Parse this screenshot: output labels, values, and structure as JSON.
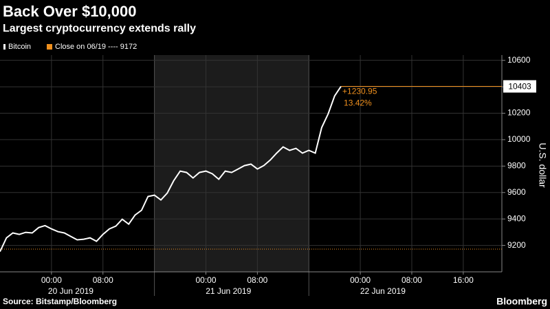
{
  "chart_data": {
    "type": "line",
    "title": "Back Over $10,000",
    "subtitle": "Largest cryptocurrency extends rally",
    "y_axis_label": "U.S. dollar",
    "source": "Source: Bitstamp/Bloomberg",
    "brand": "Bloomberg",
    "x": [
      "2019-06-19T16:00",
      "2019-06-19T17:00",
      "2019-06-19T18:00",
      "2019-06-19T19:00",
      "2019-06-19T20:00",
      "2019-06-19T21:00",
      "2019-06-19T22:00",
      "2019-06-19T23:00",
      "2019-06-20T00:00",
      "2019-06-20T01:00",
      "2019-06-20T02:00",
      "2019-06-20T03:00",
      "2019-06-20T04:00",
      "2019-06-20T05:00",
      "2019-06-20T06:00",
      "2019-06-20T07:00",
      "2019-06-20T08:00",
      "2019-06-20T09:00",
      "2019-06-20T10:00",
      "2019-06-20T11:00",
      "2019-06-20T12:00",
      "2019-06-20T13:00",
      "2019-06-20T14:00",
      "2019-06-20T15:00",
      "2019-06-20T16:00",
      "2019-06-20T17:00",
      "2019-06-20T18:00",
      "2019-06-20T19:00",
      "2019-06-20T20:00",
      "2019-06-20T21:00",
      "2019-06-20T22:00",
      "2019-06-20T23:00",
      "2019-06-21T00:00",
      "2019-06-21T01:00",
      "2019-06-21T02:00",
      "2019-06-21T03:00",
      "2019-06-21T04:00",
      "2019-06-21T05:00",
      "2019-06-21T06:00",
      "2019-06-21T07:00",
      "2019-06-21T08:00",
      "2019-06-21T09:00",
      "2019-06-21T10:00",
      "2019-06-21T11:00",
      "2019-06-21T12:00",
      "2019-06-21T13:00",
      "2019-06-21T14:00",
      "2019-06-21T15:00",
      "2019-06-21T16:00",
      "2019-06-21T17:00",
      "2019-06-21T18:00",
      "2019-06-21T19:00",
      "2019-06-21T20:00",
      "2019-06-21T21:00"
    ],
    "series": [
      {
        "name": "Bitcoin",
        "color": "#ffffff",
        "values": [
          9153,
          9257,
          9294,
          9283,
          9299,
          9294,
          9335,
          9350,
          9325,
          9304,
          9294,
          9268,
          9242,
          9247,
          9257,
          9231,
          9283,
          9325,
          9346,
          9398,
          9361,
          9430,
          9466,
          9570,
          9580,
          9544,
          9596,
          9690,
          9762,
          9752,
          9710,
          9752,
          9762,
          9742,
          9700,
          9762,
          9752,
          9778,
          9804,
          9815,
          9778,
          9804,
          9846,
          9898,
          9945,
          9919,
          9934,
          9898,
          9919,
          9898,
          10091,
          10195,
          10330,
          10403
        ]
      }
    ],
    "reference": {
      "name": "Close on 06/19 ---- 9172",
      "value": 9172,
      "color": "#f0901e"
    },
    "last_value": 10403,
    "change_labels": [
      "+1230.95",
      "13.42%"
    ],
    "xlim": [
      "2019-06-19T16:00",
      "2019-06-22T22:00"
    ],
    "xticks": [
      {
        "value": "2019-06-20T00:00",
        "label": "00:00"
      },
      {
        "value": "2019-06-20T08:00",
        "label": "08:00"
      },
      {
        "value": "2019-06-21T00:00",
        "label": "00:00"
      },
      {
        "value": "2019-06-21T08:00",
        "label": "08:00"
      },
      {
        "value": "2019-06-22T00:00",
        "label": "00:00"
      },
      {
        "value": "2019-06-22T08:00",
        "label": "08:00"
      },
      {
        "value": "2019-06-22T16:00",
        "label": "16:00"
      }
    ],
    "day_labels": [
      {
        "value": "2019-06-20T03:00",
        "label": "20 Jun 2019"
      },
      {
        "value": "2019-06-21T03:30",
        "label": "21 Jun 2019"
      },
      {
        "value": "2019-06-22T03:30",
        "label": "22 Jun 2019"
      }
    ],
    "shaded": [
      "2019-06-20T16:00",
      "2019-06-21T16:00"
    ],
    "ylim": [
      9000,
      10640
    ],
    "yticks": [
      9200,
      9400,
      9600,
      9800,
      10000,
      10200,
      10400,
      10600
    ],
    "grid": true
  }
}
